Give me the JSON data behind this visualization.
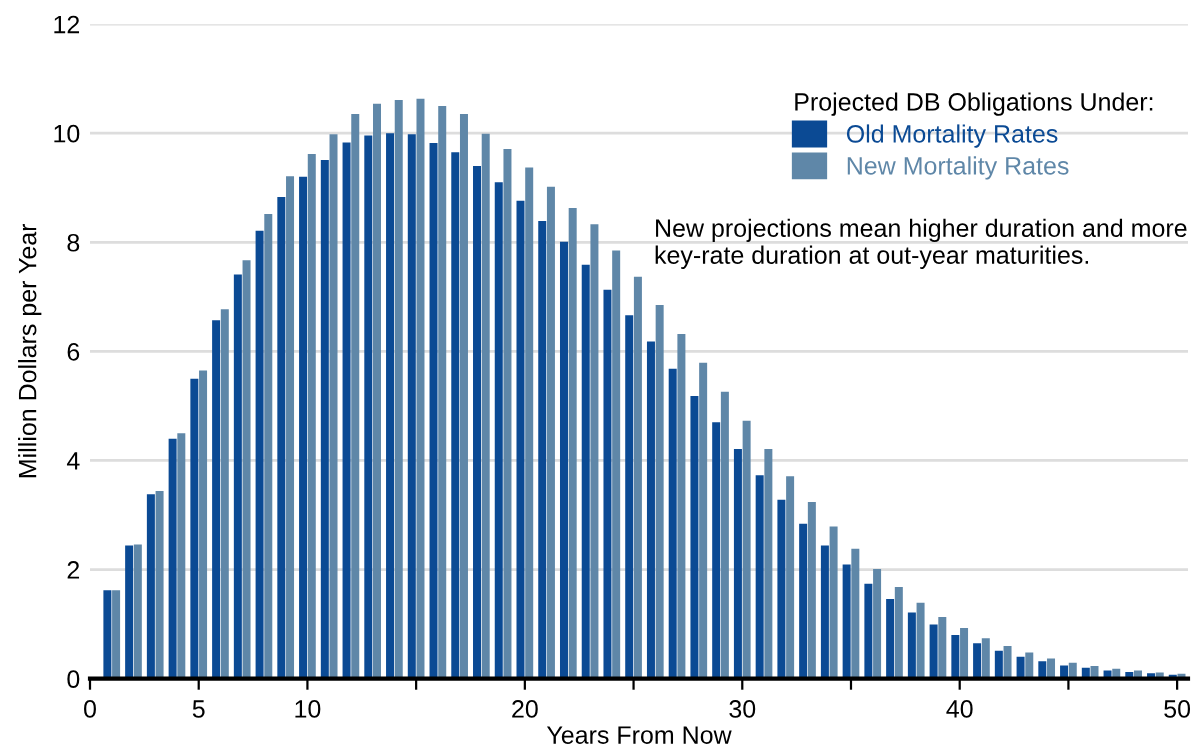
{
  "chart_data": {
    "type": "bar",
    "xlabel": "Years From Now",
    "ylabel": "Million Dollars per Year",
    "legend_title": "Projected DB Obligations Under:",
    "annotations": [
      "New projections mean higher duration and more key-rate duration at out-year maturities."
    ],
    "x": [
      1,
      2,
      3,
      4,
      5,
      6,
      7,
      8,
      9,
      10,
      11,
      12,
      13,
      14,
      15,
      16,
      17,
      18,
      19,
      20,
      21,
      22,
      23,
      24,
      25,
      26,
      27,
      28,
      29,
      30,
      31,
      32,
      33,
      34,
      35,
      36,
      37,
      38,
      39,
      40,
      41,
      42,
      43,
      44,
      45,
      46,
      47,
      48,
      49,
      50
    ],
    "series": [
      {
        "name": "Old Mortality Rates",
        "color": "#0b4a94",
        "values": [
          1.62,
          2.44,
          3.38,
          4.4,
          5.5,
          6.57,
          7.41,
          8.21,
          8.83,
          9.2,
          9.51,
          9.83,
          9.96,
          10.0,
          9.98,
          9.82,
          9.65,
          9.4,
          9.1,
          8.76,
          8.39,
          8.01,
          7.59,
          7.13,
          6.66,
          6.18,
          5.68,
          5.18,
          4.7,
          4.21,
          3.73,
          3.28,
          2.84,
          2.44,
          2.09,
          1.74,
          1.46,
          1.21,
          0.99,
          0.8,
          0.65,
          0.51,
          0.4,
          0.32,
          0.24,
          0.2,
          0.15,
          0.12,
          0.1,
          0.07
        ]
      },
      {
        "name": "New Mortality Rates",
        "color": "#5f87a8",
        "values": [
          1.62,
          2.46,
          3.44,
          4.5,
          5.65,
          6.77,
          7.67,
          8.52,
          9.21,
          9.62,
          9.98,
          10.35,
          10.54,
          10.61,
          10.63,
          10.5,
          10.35,
          9.99,
          9.71,
          9.37,
          9.02,
          8.63,
          8.33,
          7.85,
          7.37,
          6.85,
          6.32,
          5.79,
          5.26,
          4.73,
          4.21,
          3.71,
          3.24,
          2.79,
          2.38,
          2.01,
          1.68,
          1.39,
          1.13,
          0.93,
          0.74,
          0.6,
          0.48,
          0.37,
          0.29,
          0.23,
          0.18,
          0.15,
          0.11,
          0.09
        ]
      }
    ],
    "xlim": [
      0,
      50.5
    ],
    "xticks": [
      0,
      5,
      10,
      {
        "value": 15,
        "label": null
      },
      20,
      {
        "value": 25,
        "label": null
      },
      30,
      {
        "value": 35,
        "label": null
      },
      40,
      {
        "value": 45,
        "label": null
      },
      50
    ],
    "ylim": [
      0,
      12
    ],
    "yticks": [
      0,
      2,
      4,
      6,
      8,
      10,
      12
    ],
    "grid": "y",
    "legend": "top right"
  }
}
